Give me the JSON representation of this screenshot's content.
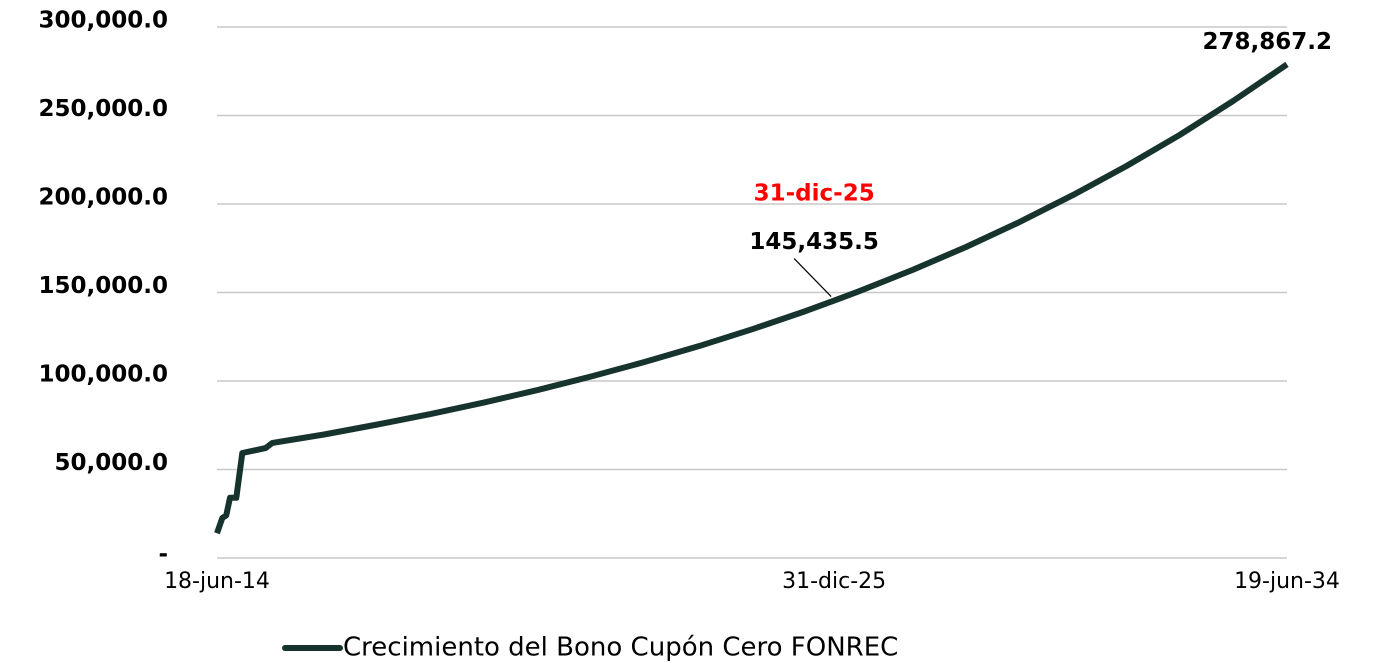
{
  "chart_data": {
    "type": "line",
    "x": [
      "2014-06-18",
      "2014-07-24",
      "2014-08-20",
      "2014-09-15",
      "2014-10-28",
      "2014-12-08",
      "2015-05-15",
      "2015-07-01",
      "2016-06-18",
      "2017-06-18",
      "2018-06-18",
      "2019-06-18",
      "2020-06-18",
      "2021-06-18",
      "2022-06-18",
      "2023-06-18",
      "2024-06-18",
      "2025-06-18",
      "2025-12-31",
      "2026-06-18",
      "2027-06-18",
      "2028-06-18",
      "2029-06-18",
      "2030-06-18",
      "2031-06-18",
      "2032-06-18",
      "2033-06-18",
      "2034-06-19"
    ],
    "series": [
      {
        "name": "Crecimiento del Bono Cupón Cero FONREC",
        "color": "#17332e",
        "values": [
          14000,
          22600,
          24000,
          34000,
          34000,
          59300,
          62100,
          65000,
          69800,
          75400,
          81400,
          87900,
          95000,
          102600,
          110800,
          119600,
          129200,
          139500,
          145435.5,
          150700,
          162700,
          175700,
          189800,
          205000,
          221400,
          239100,
          258300,
          278867.2
        ],
        "value_labels": [
          null,
          null,
          null,
          null,
          null,
          null,
          null,
          null,
          null,
          null,
          null,
          null,
          null,
          null,
          null,
          null,
          null,
          null,
          "145,435.5",
          null,
          null,
          null,
          null,
          null,
          null,
          null,
          null,
          "278,867.2"
        ]
      }
    ],
    "xlim": [
      "2014-06-18",
      "2034-06-19"
    ],
    "xticks": [
      {
        "value": "2014-06-18",
        "label": "18-jun-14"
      },
      {
        "value": "2025-12-31",
        "label": "31-dic-25"
      },
      {
        "value": "2034-06-19",
        "label": "19-jun-34"
      }
    ],
    "ylim": [
      0,
      300000
    ],
    "yticks": [
      {
        "value": 0,
        "label": "-"
      },
      {
        "value": 50000,
        "label": "50,000.0"
      },
      {
        "value": 100000,
        "label": "100,000.0"
      },
      {
        "value": 150000,
        "label": "150,000.0"
      },
      {
        "value": 200000,
        "label": "200,000.0"
      },
      {
        "value": 250000,
        "label": "250,000.0"
      },
      {
        "value": 300000,
        "label": "300,000.0"
      }
    ],
    "grid": true,
    "legend": "bottom",
    "annotations": [
      {
        "text": "31-dic-25",
        "x": "2025-12-31",
        "color": "#ff0000"
      }
    ]
  }
}
